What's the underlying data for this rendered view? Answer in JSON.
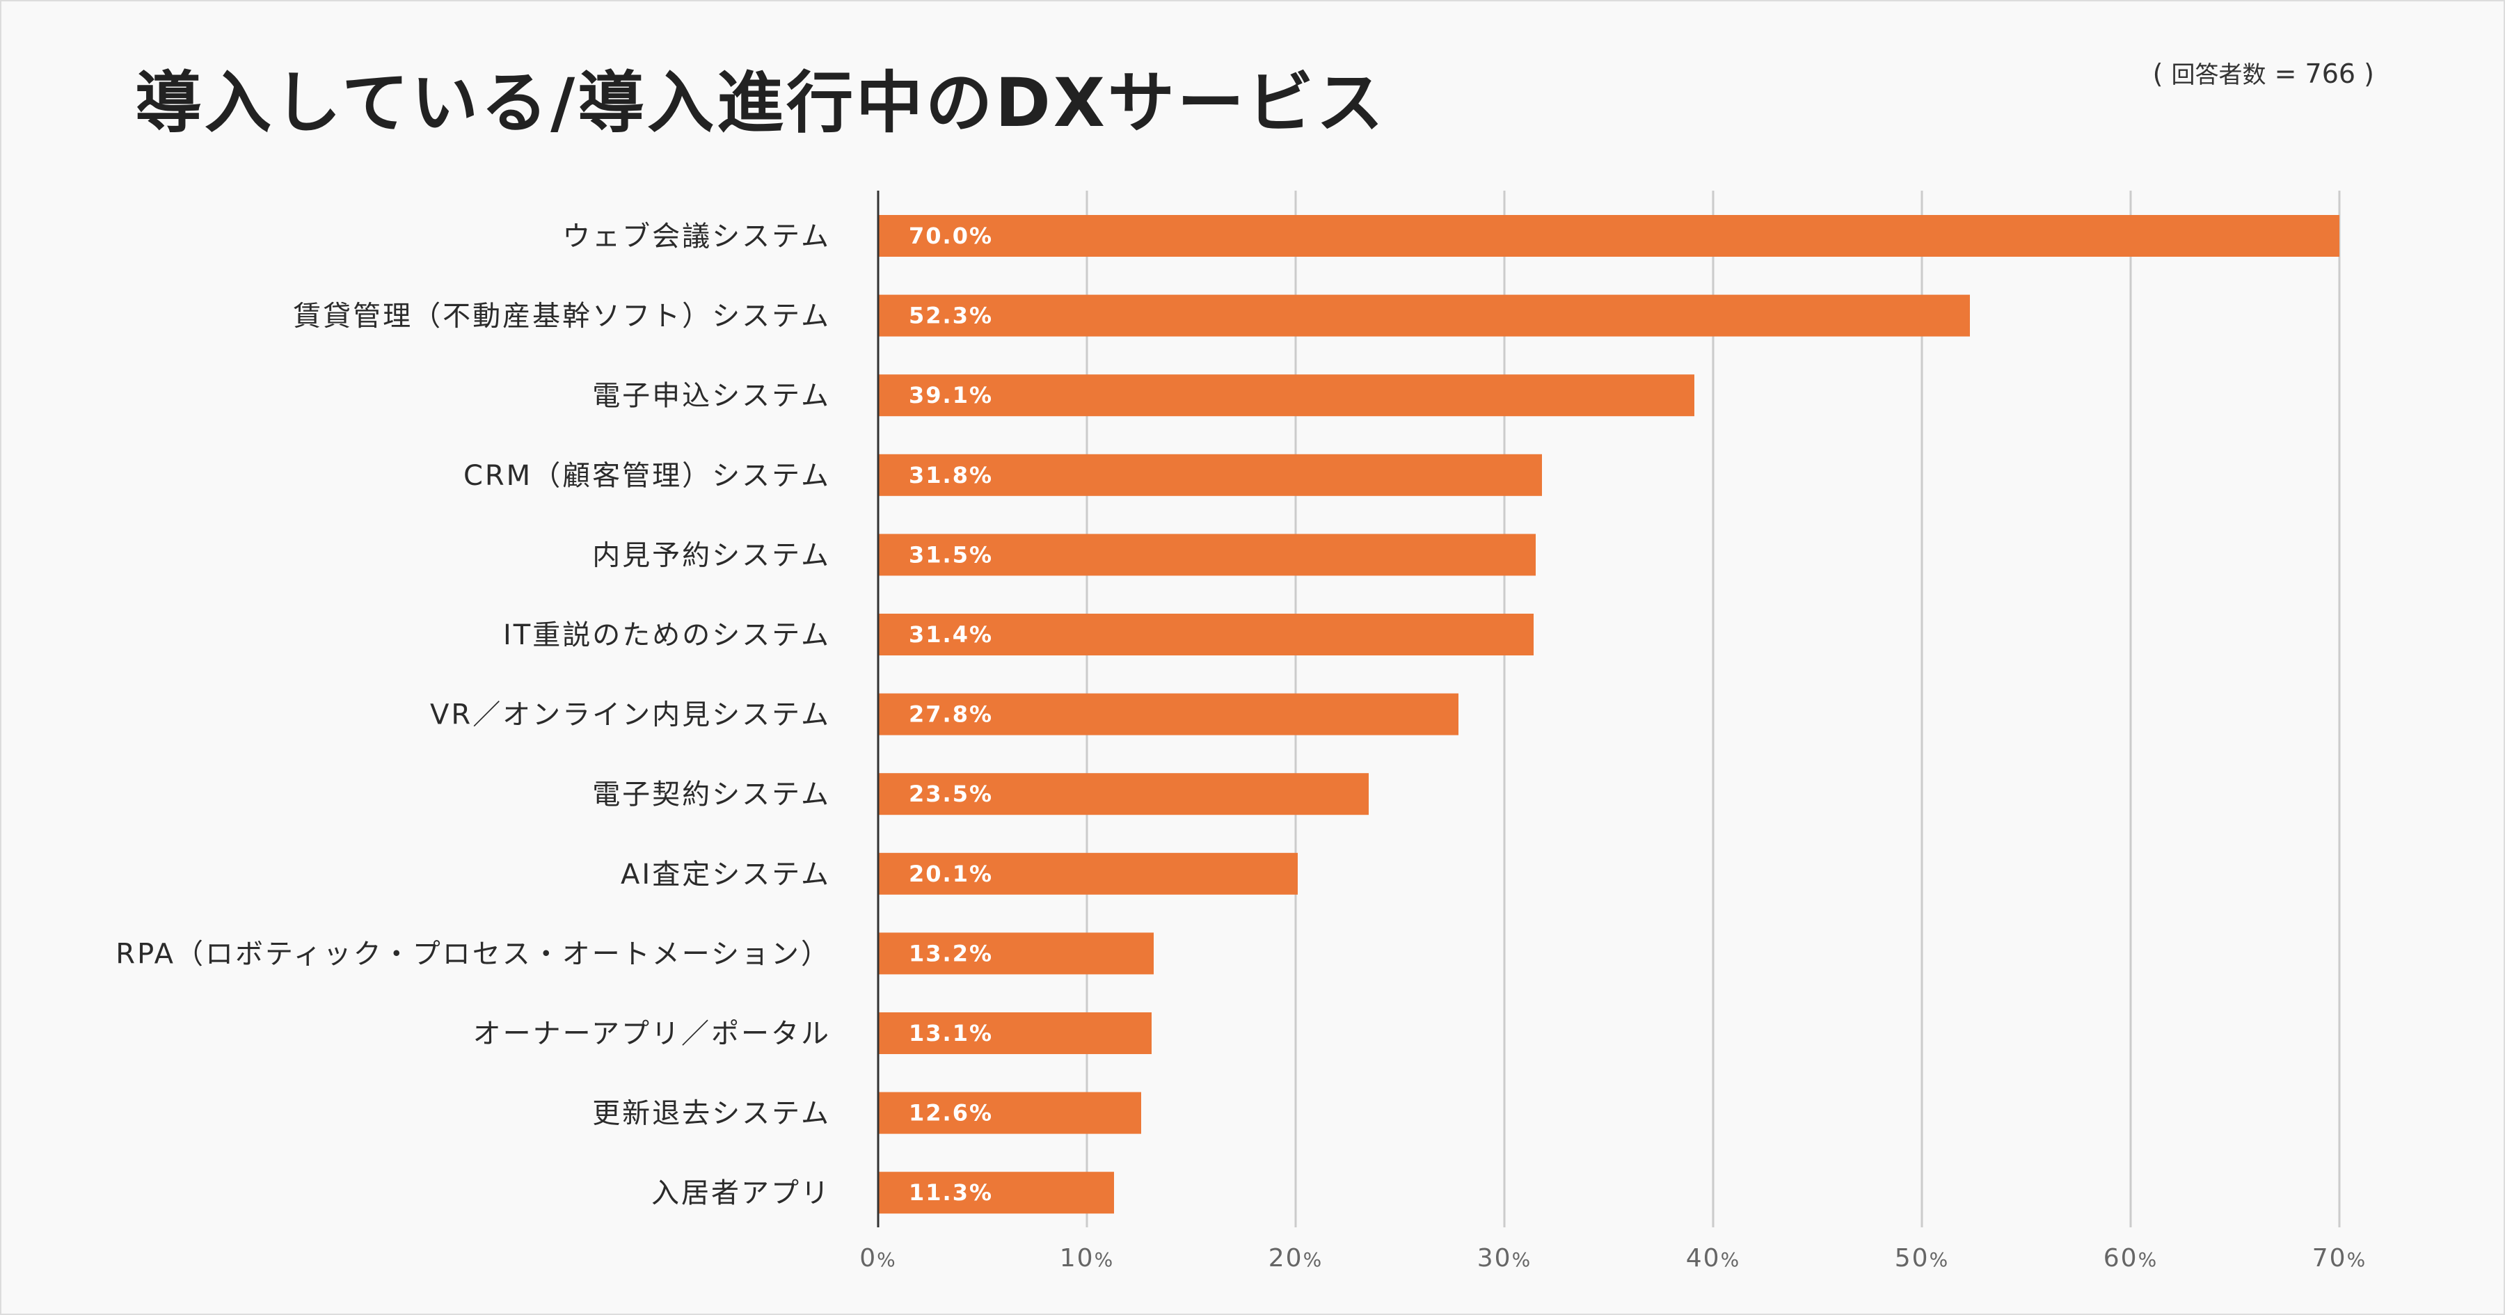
{
  "chart_data": {
    "type": "bar",
    "orientation": "horizontal",
    "title": "導入している/導入進行中のDXサービス",
    "note": {
      "open": "(",
      "label": "回答者数",
      "eq": "= 766",
      "close": ")"
    },
    "categories": [
      "ウェブ会議システム",
      "賃貸管理（不動産基幹ソフト）システム",
      "電子申込システム",
      "CRM（顧客管理）システム",
      "内見予約システム",
      "IT重説のためのシステム",
      "VR／オンライン内見システム",
      "電子契約システム",
      "AI査定システム",
      "RPA（ロボティック・プロセス・オートメーション）",
      "オーナーアプリ／ポータル",
      "更新退去システム",
      "入居者アプリ"
    ],
    "values": [
      70.0,
      52.3,
      39.1,
      31.8,
      31.5,
      31.4,
      27.8,
      23.5,
      20.1,
      13.2,
      13.1,
      12.6,
      11.3
    ],
    "value_labels": [
      "70.0%",
      "52.3%",
      "39.1%",
      "31.8%",
      "31.5%",
      "31.4%",
      "27.8%",
      "23.5%",
      "20.1%",
      "13.2%",
      "13.1%",
      "12.6%",
      "11.3%"
    ],
    "xlim": [
      0,
      70
    ],
    "xticks": [
      0,
      10,
      20,
      30,
      40,
      50,
      60,
      70
    ],
    "tick_unit": "%",
    "xlabel": "",
    "ylabel": "",
    "grid": true,
    "bar_color": "#ec7837",
    "grid_color": "#cccccc",
    "axis_color": "#333333"
  }
}
